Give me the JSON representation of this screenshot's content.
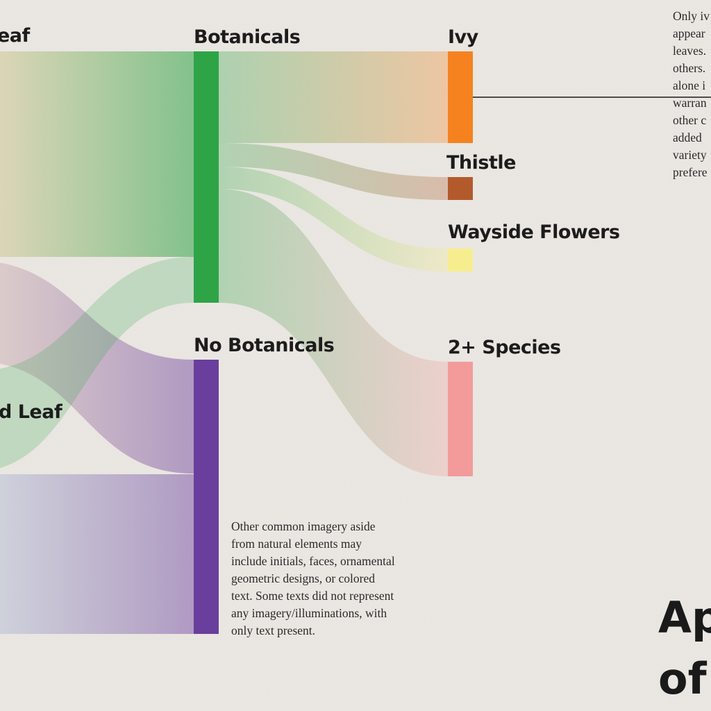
{
  "nodes": [
    {
      "id": "leaf-top",
      "label": "eaf",
      "color": "#e8cca0"
    },
    {
      "id": "leaf-mid",
      "label": "d Leaf",
      "color": "#d8b8b0"
    },
    {
      "id": "leaf-bottom",
      "label": "",
      "color": "#b8c8da"
    },
    {
      "id": "botanicals",
      "label": "Botanicals",
      "color": "#2ea446"
    },
    {
      "id": "no-botanicals",
      "label": "No Botanicals",
      "color": "#6a3e9c"
    },
    {
      "id": "ivy",
      "label": "Ivy",
      "color": "#f5821f"
    },
    {
      "id": "thistle",
      "label": "Thistle",
      "color": "#b35a2c"
    },
    {
      "id": "wayside",
      "label": "Wayside Flowers",
      "color": "#f6ee8e"
    },
    {
      "id": "species",
      "label": "2+ Species",
      "color": "#f39b9b"
    }
  ],
  "notes": {
    "right": [
      "Only iv",
      "appear",
      "leaves.",
      "others.",
      "alone i",
      "warran",
      "other c",
      "added",
      "variety",
      "prefere"
    ],
    "bottom": [
      "Other common imagery aside",
      "from natural elements may",
      "include initials, faces, ornamental",
      "geometric designs, or colored",
      "text. Some texts did not represent",
      "any imagery/illuminations, with",
      "only text present."
    ]
  },
  "title": {
    "lines": [
      "Ap",
      "of"
    ]
  }
}
